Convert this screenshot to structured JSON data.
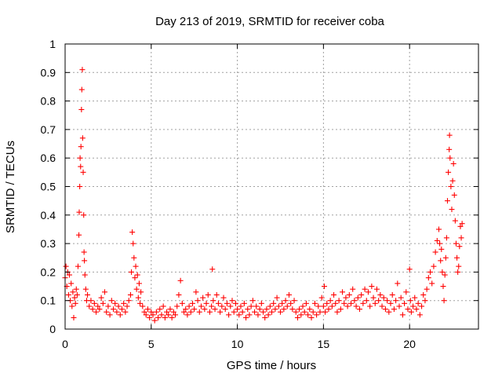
{
  "chart_data": {
    "type": "scatter",
    "title": "Day 213 of 2019, SRMTID for receiver coba",
    "xlabel": "GPS time / hours",
    "ylabel": "SRMTID / TECUs",
    "xlim": [
      0,
      24
    ],
    "ylim": [
      0,
      1
    ],
    "xticks": [
      0,
      5,
      10,
      15,
      20
    ],
    "xtick_labels": [
      "0",
      "5",
      "10",
      "15",
      "20"
    ],
    "yticks": [
      0,
      0.1,
      0.2,
      0.3,
      0.4,
      0.5,
      0.6,
      0.7,
      0.8,
      0.9,
      1
    ],
    "ytick_labels": [
      "0",
      "0.1",
      "0.2",
      "0.3",
      "0.4",
      "0.5",
      "0.6",
      "0.7",
      "0.8",
      "0.9",
      "1"
    ],
    "grid": true,
    "marker": "+",
    "marker_color": "#ff0000",
    "series": [
      {
        "name": "SRMTID",
        "points": [
          [
            0.0,
            0.18
          ],
          [
            0.05,
            0.22
          ],
          [
            0.1,
            0.15
          ],
          [
            0.15,
            0.2
          ],
          [
            0.2,
            0.12
          ],
          [
            0.25,
            0.19
          ],
          [
            0.3,
            0.1
          ],
          [
            0.35,
            0.16
          ],
          [
            0.4,
            0.08
          ],
          [
            0.45,
            0.13
          ],
          [
            0.5,
            0.04
          ],
          [
            0.55,
            0.11
          ],
          [
            0.6,
            0.09
          ],
          [
            0.65,
            0.14
          ],
          [
            0.7,
            0.12
          ],
          [
            0.75,
            0.22
          ],
          [
            0.8,
            0.33
          ],
          [
            0.82,
            0.41
          ],
          [
            0.85,
            0.5
          ],
          [
            0.87,
            0.6
          ],
          [
            0.9,
            0.57
          ],
          [
            0.92,
            0.64
          ],
          [
            0.95,
            0.77
          ],
          [
            0.97,
            0.84
          ],
          [
            1.0,
            0.91
          ],
          [
            1.02,
            0.67
          ],
          [
            1.05,
            0.55
          ],
          [
            1.08,
            0.4
          ],
          [
            1.1,
            0.27
          ],
          [
            1.12,
            0.24
          ],
          [
            1.15,
            0.19
          ],
          [
            1.2,
            0.14
          ],
          [
            1.25,
            0.1
          ],
          [
            1.3,
            0.12
          ],
          [
            1.4,
            0.08
          ],
          [
            1.5,
            0.1
          ],
          [
            1.6,
            0.07
          ],
          [
            1.7,
            0.09
          ],
          [
            1.8,
            0.06
          ],
          [
            1.9,
            0.08
          ],
          [
            2.0,
            0.07
          ],
          [
            2.1,
            0.11
          ],
          [
            2.2,
            0.09
          ],
          [
            2.3,
            0.13
          ],
          [
            2.4,
            0.06
          ],
          [
            2.5,
            0.08
          ],
          [
            2.6,
            0.05
          ],
          [
            2.7,
            0.1
          ],
          [
            2.8,
            0.07
          ],
          [
            2.9,
            0.09
          ],
          [
            3.0,
            0.06
          ],
          [
            3.1,
            0.08
          ],
          [
            3.2,
            0.05
          ],
          [
            3.3,
            0.07
          ],
          [
            3.4,
            0.09
          ],
          [
            3.5,
            0.06
          ],
          [
            3.6,
            0.08
          ],
          [
            3.7,
            0.1
          ],
          [
            3.8,
            0.12
          ],
          [
            3.85,
            0.2
          ],
          [
            3.9,
            0.34
          ],
          [
            3.95,
            0.3
          ],
          [
            4.0,
            0.25
          ],
          [
            4.05,
            0.18
          ],
          [
            4.1,
            0.22
          ],
          [
            4.15,
            0.14
          ],
          [
            4.2,
            0.19
          ],
          [
            4.25,
            0.11
          ],
          [
            4.3,
            0.16
          ],
          [
            4.35,
            0.09
          ],
          [
            4.4,
            0.13
          ],
          [
            4.5,
            0.08
          ],
          [
            4.6,
            0.06
          ],
          [
            4.7,
            0.05
          ],
          [
            4.8,
            0.07
          ],
          [
            4.9,
            0.04
          ],
          [
            5.0,
            0.06
          ],
          [
            5.1,
            0.05
          ],
          [
            5.2,
            0.03
          ],
          [
            5.3,
            0.06
          ],
          [
            5.4,
            0.04
          ],
          [
            5.5,
            0.07
          ],
          [
            5.6,
            0.05
          ],
          [
            5.7,
            0.08
          ],
          [
            5.8,
            0.04
          ],
          [
            5.9,
            0.06
          ],
          [
            6.0,
            0.05
          ],
          [
            6.1,
            0.07
          ],
          [
            6.2,
            0.04
          ],
          [
            6.3,
            0.06
          ],
          [
            6.4,
            0.05
          ],
          [
            6.5,
            0.08
          ],
          [
            6.6,
            0.12
          ],
          [
            6.7,
            0.17
          ],
          [
            6.8,
            0.09
          ],
          [
            6.9,
            0.06
          ],
          [
            7.0,
            0.07
          ],
          [
            7.1,
            0.05
          ],
          [
            7.2,
            0.08
          ],
          [
            7.3,
            0.06
          ],
          [
            7.4,
            0.09
          ],
          [
            7.5,
            0.07
          ],
          [
            7.6,
            0.13
          ],
          [
            7.7,
            0.1
          ],
          [
            7.8,
            0.06
          ],
          [
            7.9,
            0.08
          ],
          [
            8.0,
            0.11
          ],
          [
            8.1,
            0.07
          ],
          [
            8.2,
            0.09
          ],
          [
            8.3,
            0.12
          ],
          [
            8.4,
            0.06
          ],
          [
            8.5,
            0.08
          ],
          [
            8.55,
            0.21
          ],
          [
            8.6,
            0.1
          ],
          [
            8.7,
            0.07
          ],
          [
            8.8,
            0.12
          ],
          [
            8.9,
            0.09
          ],
          [
            9.0,
            0.06
          ],
          [
            9.1,
            0.08
          ],
          [
            9.2,
            0.11
          ],
          [
            9.3,
            0.07
          ],
          [
            9.4,
            0.09
          ],
          [
            9.5,
            0.05
          ],
          [
            9.6,
            0.08
          ],
          [
            9.7,
            0.1
          ],
          [
            9.8,
            0.06
          ],
          [
            9.9,
            0.09
          ],
          [
            10.0,
            0.07
          ],
          [
            10.1,
            0.05
          ],
          [
            10.2,
            0.08
          ],
          [
            10.3,
            0.06
          ],
          [
            10.4,
            0.09
          ],
          [
            10.5,
            0.04
          ],
          [
            10.6,
            0.07
          ],
          [
            10.7,
            0.05
          ],
          [
            10.8,
            0.08
          ],
          [
            10.9,
            0.1
          ],
          [
            11.0,
            0.06
          ],
          [
            11.1,
            0.08
          ],
          [
            11.2,
            0.05
          ],
          [
            11.3,
            0.07
          ],
          [
            11.4,
            0.09
          ],
          [
            11.5,
            0.06
          ],
          [
            11.6,
            0.04
          ],
          [
            11.7,
            0.07
          ],
          [
            11.8,
            0.05
          ],
          [
            11.9,
            0.08
          ],
          [
            12.0,
            0.06
          ],
          [
            12.1,
            0.09
          ],
          [
            12.2,
            0.07
          ],
          [
            12.3,
            0.11
          ],
          [
            12.4,
            0.08
          ],
          [
            12.5,
            0.06
          ],
          [
            12.6,
            0.09
          ],
          [
            12.7,
            0.07
          ],
          [
            12.8,
            0.1
          ],
          [
            12.9,
            0.08
          ],
          [
            13.0,
            0.12
          ],
          [
            13.1,
            0.09
          ],
          [
            13.2,
            0.07
          ],
          [
            13.3,
            0.1
          ],
          [
            13.4,
            0.06
          ],
          [
            13.5,
            0.04
          ],
          [
            13.6,
            0.07
          ],
          [
            13.7,
            0.05
          ],
          [
            13.8,
            0.08
          ],
          [
            13.9,
            0.06
          ],
          [
            14.0,
            0.09
          ],
          [
            14.1,
            0.05
          ],
          [
            14.2,
            0.07
          ],
          [
            14.3,
            0.04
          ],
          [
            14.4,
            0.06
          ],
          [
            14.5,
            0.09
          ],
          [
            14.6,
            0.05
          ],
          [
            14.7,
            0.08
          ],
          [
            14.8,
            0.06
          ],
          [
            14.9,
            0.11
          ],
          [
            15.0,
            0.08
          ],
          [
            15.05,
            0.15
          ],
          [
            15.1,
            0.06
          ],
          [
            15.2,
            0.09
          ],
          [
            15.3,
            0.07
          ],
          [
            15.4,
            0.1
          ],
          [
            15.5,
            0.08
          ],
          [
            15.6,
            0.12
          ],
          [
            15.7,
            0.09
          ],
          [
            15.8,
            0.06
          ],
          [
            15.9,
            0.1
          ],
          [
            16.0,
            0.07
          ],
          [
            16.1,
            0.13
          ],
          [
            16.2,
            0.09
          ],
          [
            16.3,
            0.11
          ],
          [
            16.4,
            0.08
          ],
          [
            16.5,
            0.12
          ],
          [
            16.6,
            0.09
          ],
          [
            16.7,
            0.14
          ],
          [
            16.8,
            0.1
          ],
          [
            16.9,
            0.08
          ],
          [
            17.0,
            0.11
          ],
          [
            17.1,
            0.07
          ],
          [
            17.2,
            0.12
          ],
          [
            17.3,
            0.09
          ],
          [
            17.4,
            0.14
          ],
          [
            17.5,
            0.1
          ],
          [
            17.6,
            0.13
          ],
          [
            17.7,
            0.08
          ],
          [
            17.8,
            0.15
          ],
          [
            17.9,
            0.11
          ],
          [
            18.0,
            0.09
          ],
          [
            18.1,
            0.14
          ],
          [
            18.2,
            0.1
          ],
          [
            18.3,
            0.12
          ],
          [
            18.4,
            0.08
          ],
          [
            18.5,
            0.11
          ],
          [
            18.6,
            0.07
          ],
          [
            18.7,
            0.1
          ],
          [
            18.8,
            0.06
          ],
          [
            18.9,
            0.09
          ],
          [
            19.0,
            0.12
          ],
          [
            19.1,
            0.07
          ],
          [
            19.2,
            0.1
          ],
          [
            19.3,
            0.16
          ],
          [
            19.4,
            0.08
          ],
          [
            19.5,
            0.11
          ],
          [
            19.6,
            0.05
          ],
          [
            19.7,
            0.09
          ],
          [
            19.8,
            0.13
          ],
          [
            19.9,
            0.07
          ],
          [
            20.0,
            0.21
          ],
          [
            20.05,
            0.1
          ],
          [
            20.1,
            0.06
          ],
          [
            20.2,
            0.08
          ],
          [
            20.3,
            0.11
          ],
          [
            20.4,
            0.07
          ],
          [
            20.5,
            0.09
          ],
          [
            20.6,
            0.05
          ],
          [
            20.7,
            0.08
          ],
          [
            20.8,
            0.12
          ],
          [
            20.9,
            0.1
          ],
          [
            21.0,
            0.14
          ],
          [
            21.1,
            0.18
          ],
          [
            21.2,
            0.2
          ],
          [
            21.3,
            0.16
          ],
          [
            21.4,
            0.22
          ],
          [
            21.5,
            0.27
          ],
          [
            21.6,
            0.31
          ],
          [
            21.7,
            0.35
          ],
          [
            21.75,
            0.3
          ],
          [
            21.8,
            0.24
          ],
          [
            21.85,
            0.28
          ],
          [
            21.9,
            0.2
          ],
          [
            21.95,
            0.15
          ],
          [
            22.0,
            0.1
          ],
          [
            22.05,
            0.19
          ],
          [
            22.1,
            0.25
          ],
          [
            22.15,
            0.32
          ],
          [
            22.2,
            0.45
          ],
          [
            22.25,
            0.55
          ],
          [
            22.3,
            0.63
          ],
          [
            22.32,
            0.68
          ],
          [
            22.35,
            0.6
          ],
          [
            22.4,
            0.5
          ],
          [
            22.45,
            0.42
          ],
          [
            22.5,
            0.52
          ],
          [
            22.55,
            0.58
          ],
          [
            22.6,
            0.47
          ],
          [
            22.65,
            0.38
          ],
          [
            22.7,
            0.3
          ],
          [
            22.75,
            0.25
          ],
          [
            22.8,
            0.2
          ],
          [
            22.85,
            0.22
          ],
          [
            22.9,
            0.29
          ],
          [
            22.95,
            0.36
          ],
          [
            23.0,
            0.32
          ],
          [
            23.05,
            0.37
          ]
        ]
      }
    ]
  }
}
